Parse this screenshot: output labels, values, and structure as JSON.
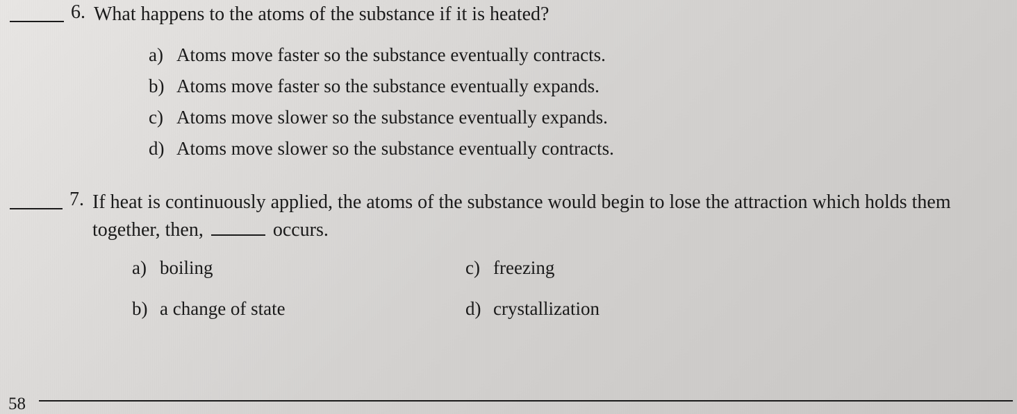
{
  "q6": {
    "number": "6.",
    "stem": "What happens to the atoms of the substance if it is heated?",
    "options": {
      "a": {
        "letter": "a)",
        "text": "Atoms move faster so the substance eventually contracts."
      },
      "b": {
        "letter": "b)",
        "text": "Atoms move faster so the substance eventually expands."
      },
      "c": {
        "letter": "c)",
        "text": "Atoms move slower so the substance eventually expands."
      },
      "d": {
        "letter": "d)",
        "text": "Atoms move slower so the substance eventually contracts."
      }
    }
  },
  "q7": {
    "number": "7.",
    "stem_part1": "If heat is continuously applied, the atoms of the substance would begin to lose the attraction which holds them together, then,",
    "stem_part2": "occurs.",
    "options": {
      "a": {
        "letter": "a)",
        "text": "boiling"
      },
      "b": {
        "letter": "b)",
        "text": "a change of state"
      },
      "c": {
        "letter": "c)",
        "text": "freezing"
      },
      "d": {
        "letter": "d)",
        "text": "crystallization"
      }
    }
  },
  "page_number": "58",
  "colors": {
    "text": "#1a1a1a",
    "background_start": "#e8e6e4",
    "background_end": "#c8c6c4"
  },
  "typography": {
    "font_family": "Georgia, Times New Roman, serif",
    "question_fontsize": 28,
    "option_fontsize": 27
  }
}
